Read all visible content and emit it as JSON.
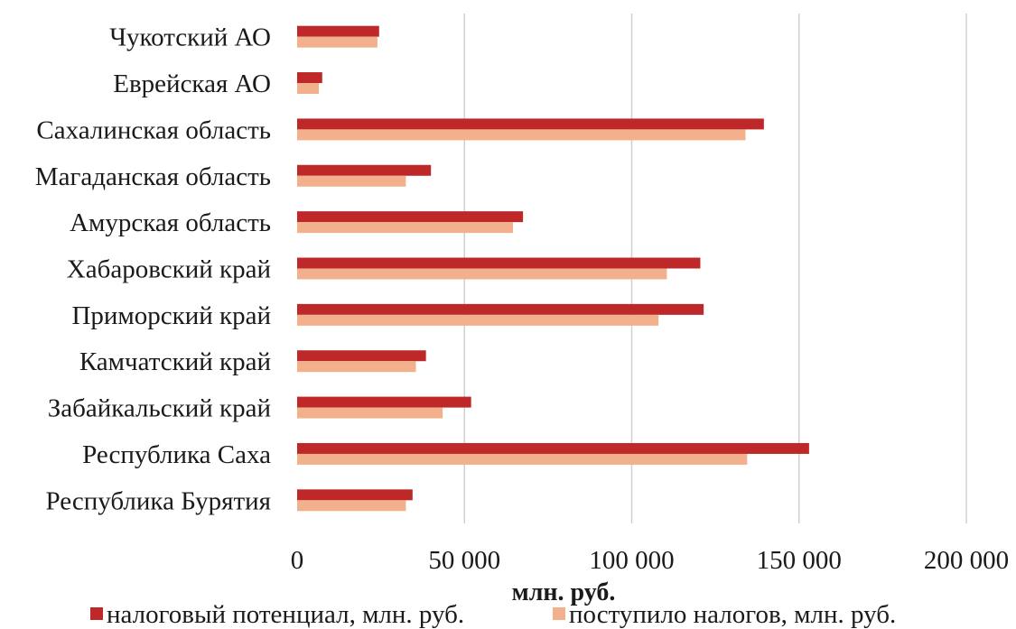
{
  "chart_data": {
    "type": "bar",
    "orientation": "horizontal",
    "categories": [
      "Республика Бурятия",
      "Республика Саха",
      "Забайкальский край",
      "Камчатский край",
      "Приморский край",
      "Хабаровский край",
      "Амурская  область",
      "Магаданская область",
      "Сахалинская область",
      "Еврейская АО",
      "Чукотский АО"
    ],
    "series": [
      {
        "name": "налоговый потенциал, млн. руб.",
        "color": "#be2828",
        "values": [
          34500,
          153000,
          52000,
          38500,
          121500,
          120500,
          67500,
          40000,
          139500,
          7500,
          24500
        ]
      },
      {
        "name": "поступило  налогов, млн. руб.",
        "color": "#f2b08c",
        "values": [
          32500,
          134500,
          43500,
          35500,
          108000,
          110500,
          64500,
          32500,
          134000,
          6500,
          24000
        ]
      }
    ],
    "xlim": [
      0,
      200000
    ],
    "xticks": [
      0,
      50000,
      100000,
      150000,
      200000
    ],
    "xtick_labels": [
      "0",
      "50 000",
      "100 000",
      "150 000",
      "200 000"
    ],
    "xlabel": "млн. руб.",
    "ylabel": "",
    "title": "",
    "grid": "vertical",
    "legend_position": "bottom"
  }
}
